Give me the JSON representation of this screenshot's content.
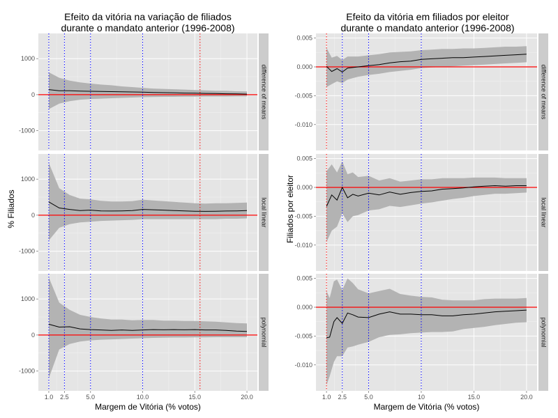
{
  "chart_data": [
    {
      "type": "line",
      "title": "Efeito da vitória na variação de filiados\ndurante o mandato anterior (1996-2008)",
      "xlabel": "Margem de Vitória (% votos)",
      "ylabel": "% Filiados",
      "xlim": [
        0.0,
        21.0
      ],
      "x_ticks": [
        1.0,
        2.5,
        5.0,
        10.0,
        15.0,
        20.0
      ],
      "x_tick_labels": [
        "1.0",
        "2.5",
        "5.0",
        "10.0",
        "15.0",
        "20.0"
      ],
      "ylim": [
        -1550,
        1700
      ],
      "y_ticks": [
        -1000,
        0,
        1000
      ],
      "y_tick_labels": [
        "-1000",
        "0",
        "1000"
      ],
      "vlines_blue": [
        1.0,
        2.5,
        5.0,
        10.0
      ],
      "vline_red": 15.5,
      "hline_red": 0,
      "grid": true,
      "colors": {
        "panel": "#e5e5e5",
        "band": "#b3b3b3",
        "line": "#000000",
        "hline": "#ff0000",
        "vline_blue": "#0000ff",
        "vline_red": "#ff0000",
        "strip": "#cccccc"
      },
      "facets": [
        {
          "strip": "difference of means",
          "x": [
            1.0,
            2.0,
            3.0,
            4.0,
            5.0,
            6.0,
            7.0,
            8.0,
            9.0,
            10.0,
            11.0,
            12.0,
            13.0,
            14.0,
            15.0,
            16.0,
            17.0,
            18.0,
            19.0,
            20.0
          ],
          "y": [
            140,
            110,
            110,
            100,
            95,
            90,
            85,
            80,
            75,
            70,
            60,
            55,
            50,
            45,
            40,
            35,
            30,
            25,
            20,
            15
          ],
          "lower": [
            -400,
            -250,
            -180,
            -140,
            -120,
            -110,
            -100,
            -90,
            -80,
            -70,
            -65,
            -60,
            -60,
            -55,
            -55,
            -50,
            -50,
            -50,
            -45,
            -45
          ],
          "upper": [
            620,
            470,
            390,
            340,
            310,
            280,
            260,
            230,
            210,
            190,
            170,
            160,
            150,
            140,
            130,
            120,
            110,
            105,
            95,
            90
          ]
        },
        {
          "strip": "local linear",
          "x": [
            1.0,
            2.0,
            3.0,
            4.0,
            5.0,
            6.0,
            7.0,
            8.0,
            9.0,
            10.0,
            11.0,
            12.0,
            13.0,
            14.0,
            15.0,
            16.0,
            17.0,
            18.0,
            19.0,
            20.0
          ],
          "y": [
            370,
            200,
            160,
            130,
            140,
            120,
            115,
            120,
            130,
            160,
            150,
            140,
            130,
            120,
            110,
            105,
            110,
            115,
            120,
            130
          ],
          "lower": [
            -700,
            -350,
            -250,
            -200,
            -180,
            -160,
            -150,
            -140,
            -130,
            -110,
            -110,
            -110,
            -110,
            -110,
            -110,
            -110,
            -110,
            -100,
            -100,
            -90
          ],
          "upper": [
            1450,
            750,
            560,
            460,
            440,
            400,
            380,
            380,
            390,
            430,
            410,
            390,
            370,
            350,
            330,
            320,
            330,
            330,
            340,
            350
          ]
        },
        {
          "strip": "polynomial",
          "x": [
            1.0,
            2.0,
            3.0,
            4.0,
            5.0,
            6.0,
            7.0,
            8.0,
            9.0,
            10.0,
            11.0,
            12.0,
            13.0,
            14.0,
            15.0,
            16.0,
            17.0,
            18.0,
            19.0,
            20.0
          ],
          "y": [
            300,
            220,
            230,
            170,
            150,
            140,
            130,
            140,
            130,
            140,
            150,
            145,
            150,
            145,
            150,
            140,
            140,
            130,
            110,
            100
          ],
          "lower": [
            -1200,
            -400,
            -250,
            -180,
            -150,
            -130,
            -120,
            -110,
            -100,
            -90,
            -80,
            -75,
            -70,
            -70,
            -65,
            -65,
            -60,
            -60,
            -60,
            -60
          ],
          "upper": [
            1600,
            900,
            700,
            560,
            500,
            460,
            430,
            430,
            410,
            420,
            420,
            400,
            400,
            390,
            390,
            380,
            370,
            350,
            330,
            320
          ]
        }
      ]
    },
    {
      "type": "line",
      "title": "Efeito da vitória em filiados por eleitor\ndurante o mandato anterior (1996-2008)",
      "xlabel": "Margem de Vitória (% votos)",
      "ylabel": "Filiados por eleitor",
      "xlim": [
        0.0,
        21.0
      ],
      "x_ticks": [
        1.0,
        2.5,
        5.0,
        10.0,
        15.0,
        20.0
      ],
      "x_tick_labels": [
        "1.0",
        "2.5",
        "5.0",
        "10",
        "15.0",
        "20.0"
      ],
      "ylim": [
        -0.0145,
        0.0058
      ],
      "y_ticks": [
        -0.01,
        -0.005,
        0.0,
        0.005
      ],
      "y_tick_labels": [
        "-0.010",
        "-0.005",
        "0.000",
        "0.005"
      ],
      "vlines_blue": [
        2.5,
        5.0,
        10.0
      ],
      "vline_red": 1.0,
      "hline_red": 0,
      "grid": true,
      "colors": {
        "panel": "#e5e5e5",
        "band": "#b3b3b3",
        "line": "#000000",
        "hline": "#ff0000",
        "vline_blue": "#0000ff",
        "vline_red": "#ff0000",
        "strip": "#cccccc"
      },
      "facets": [
        {
          "strip": "difference of means",
          "x": [
            1.0,
            1.5,
            2.0,
            2.5,
            3.0,
            4.0,
            5.0,
            6.0,
            7.0,
            8.0,
            9.0,
            10.0,
            11.0,
            12.0,
            13.0,
            14.0,
            15.0,
            16.0,
            17.0,
            18.0,
            19.0,
            20.0
          ],
          "y": [
            0.0001,
            -0.0008,
            -0.0003,
            -0.0009,
            -0.0002,
            0.0,
            0.0002,
            0.0004,
            0.0007,
            0.0009,
            0.001,
            0.0013,
            0.0014,
            0.0015,
            0.0016,
            0.0016,
            0.0017,
            0.0018,
            0.0019,
            0.002,
            0.0021,
            0.0022
          ],
          "lower": [
            -0.0035,
            -0.003,
            -0.0025,
            -0.0028,
            -0.0022,
            -0.0017,
            -0.0014,
            -0.0012,
            -0.0009,
            -0.0007,
            -0.0005,
            -0.0002,
            -0.0001,
            0.0,
            0.0001,
            0.0002,
            0.0003,
            0.0004,
            0.0005,
            0.0006,
            0.0007,
            0.0008
          ],
          "upper": [
            0.0033,
            0.0016,
            0.0019,
            0.0012,
            0.0018,
            0.0018,
            0.002,
            0.0022,
            0.0025,
            0.0026,
            0.0027,
            0.0029,
            0.003,
            0.0031,
            0.0031,
            0.0032,
            0.0032,
            0.0033,
            0.0034,
            0.0035,
            0.0035,
            0.0036
          ]
        },
        {
          "strip": "local linear",
          "x": [
            1.0,
            1.5,
            2.0,
            2.5,
            3.0,
            3.5,
            4.0,
            5.0,
            6.0,
            7.0,
            8.0,
            9.0,
            10.0,
            11.0,
            12.0,
            13.0,
            14.0,
            15.0,
            16.0,
            17.0,
            18.0,
            19.0,
            20.0
          ],
          "y": [
            -0.0033,
            -0.0013,
            -0.0022,
            0.0,
            -0.0018,
            -0.0012,
            -0.0015,
            -0.001,
            -0.0013,
            -0.0008,
            -0.0012,
            -0.0009,
            -0.0007,
            -0.0006,
            -0.0003,
            -0.0002,
            -0.0001,
            0.0001,
            0.0002,
            0.0003,
            0.0002,
            0.0003,
            0.0003
          ],
          "lower": [
            -0.0095,
            -0.0075,
            -0.0068,
            -0.0045,
            -0.006,
            -0.005,
            -0.0048,
            -0.004,
            -0.0038,
            -0.0032,
            -0.0034,
            -0.0031,
            -0.0028,
            -0.0026,
            -0.0023,
            -0.002,
            -0.0018,
            -0.0015,
            -0.0013,
            -0.0011,
            -0.0011,
            -0.001,
            -0.0009
          ],
          "upper": [
            0.0028,
            0.004,
            0.0026,
            0.0045,
            0.0023,
            0.0026,
            0.0018,
            0.002,
            0.0012,
            0.0016,
            0.001,
            0.0012,
            0.0014,
            0.0014,
            0.0016,
            0.0016,
            0.0016,
            0.0017,
            0.0017,
            0.0017,
            0.0016,
            0.0016,
            0.0016
          ]
        },
        {
          "strip": "polynomial",
          "x": [
            1.0,
            1.3,
            1.7,
            2.0,
            2.5,
            3.0,
            3.5,
            4.0,
            5.0,
            6.0,
            7.0,
            8.0,
            9.0,
            10.0,
            11.0,
            12.0,
            13.0,
            14.0,
            15.0,
            16.0,
            17.0,
            18.0,
            19.0,
            20.0
          ],
          "y": [
            -0.0053,
            -0.0052,
            -0.0025,
            -0.0018,
            -0.0028,
            -0.001,
            -0.0013,
            -0.0017,
            -0.0018,
            -0.0012,
            -0.0008,
            -0.0012,
            -0.0012,
            -0.0013,
            -0.0013,
            -0.0015,
            -0.0015,
            -0.0013,
            -0.0012,
            -0.001,
            -0.0008,
            -0.0007,
            -0.0006,
            -0.0005
          ],
          "lower": [
            -0.0135,
            -0.012,
            -0.0095,
            -0.0085,
            -0.0085,
            -0.007,
            -0.0068,
            -0.0065,
            -0.006,
            -0.0052,
            -0.0048,
            -0.0047,
            -0.0045,
            -0.0044,
            -0.0043,
            -0.0043,
            -0.0042,
            -0.0038,
            -0.0036,
            -0.0034,
            -0.0031,
            -0.0029,
            -0.0027,
            -0.0026
          ],
          "upper": [
            0.0028,
            0.0016,
            0.0045,
            0.0048,
            0.003,
            0.005,
            0.0042,
            0.0031,
            0.0024,
            0.0028,
            0.0032,
            0.0023,
            0.002,
            0.0018,
            0.0017,
            0.0013,
            0.0012,
            0.0012,
            0.0012,
            0.0014,
            0.0015,
            0.0015,
            0.0015,
            0.0016
          ]
        }
      ]
    }
  ]
}
